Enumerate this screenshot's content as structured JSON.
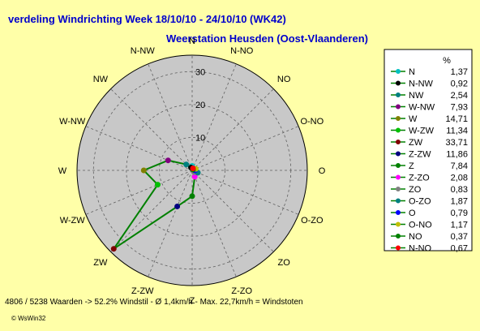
{
  "chart_data": {
    "type": "radar",
    "title": "verdeling Windrichting   Week 18/10/10 - 24/10/10 (WK42)",
    "subtitle": "Weerstation Heusden (Oost-Vlaanderen)",
    "radial_ticks": [
      10,
      20,
      30
    ],
    "rlim": [
      0,
      35
    ],
    "grid": true,
    "legend_position": "right",
    "legend_header": "%",
    "series": [
      {
        "categories": [
          "N",
          "N-NW",
          "NW",
          "W-NW",
          "W",
          "W-ZW",
          "ZW",
          "Z-ZW",
          "Z",
          "Z-ZO",
          "ZO",
          "O-ZO",
          "O",
          "O-NO",
          "NO",
          "N-NO"
        ],
        "labels": [
          "1,37",
          "0,92",
          "2,54",
          "7,93",
          "14,71",
          "11,34",
          "33,71",
          "11,86",
          "7,84",
          "2,08",
          "0,83",
          "1,87",
          "0,79",
          "1,17",
          "0,37",
          "0,67"
        ],
        "values": [
          1.37,
          0.92,
          2.54,
          7.93,
          14.71,
          11.34,
          33.71,
          11.86,
          7.84,
          2.08,
          0.83,
          1.87,
          0.79,
          1.17,
          0.37,
          0.67
        ],
        "marker_colors": [
          "#00c0c0",
          "#000000",
          "#008080",
          "#800080",
          "#808000",
          "#00c000",
          "#800000",
          "#000080",
          "#008000",
          "#ff00ff",
          "#808080",
          "#008080",
          "#0000ff",
          "#c0c000",
          "#008000",
          "#ff0000"
        ]
      }
    ],
    "line_color": "#008000",
    "footer": "4806 / 5238 Waarden  -> 52.2% Windstil   -   Ø 1,4km/h   -   Max. 22,7km/h = Windstoten",
    "brand": "© WsWin32"
  }
}
